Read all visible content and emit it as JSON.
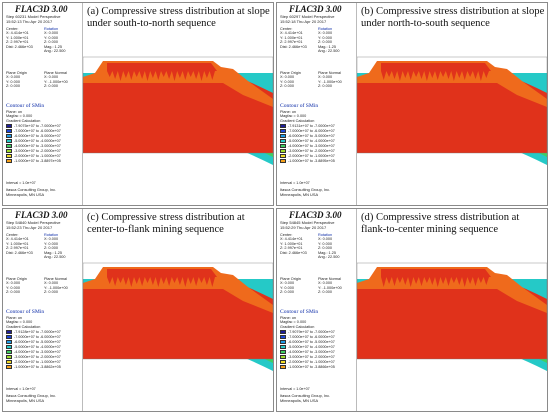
{
  "software_title": "FLAC3D 3.00",
  "legend_colors": [
    "#1f1f99",
    "#1c46d8",
    "#1f9ce8",
    "#25c9c7",
    "#3fcf62",
    "#9fdc2b",
    "#f0dc25",
    "#f6a21c",
    "#ef6a1c",
    "#e0321b"
  ],
  "common": {
    "rotation_title": "Rotation",
    "plane_origin_title": "Plane Origin",
    "plane_normal_title": "Plane Normal",
    "contour_title": "Contour of SMin",
    "plane_on": "Plane: on",
    "magfac": "Magfac = 0.000",
    "gradient": "Gradient Calculation",
    "interval": "Interval = 1.0e+07",
    "company": "Itasca Consulting Group, Inc.",
    "city": "Minneapolis, MN  USA"
  },
  "panels": [
    {
      "caption": "(a) Compressive stress distribution at slope under south-to-north sequence",
      "step_line": "Step 60231  Model Perspective",
      "time_line": "15:52:13 Thu Apr 20 2017",
      "center": [
        "Center:",
        "X: 4.414e+01",
        "Y: 1.000e+01",
        "Z: 2.997e+01",
        "Dist: 2.466e+03"
      ],
      "rotation": [
        "X: 0.000",
        "Y: 0.000",
        "Z: 0.000",
        "Mag.: 1.25",
        "Ang.: 22.500"
      ],
      "plane_origin": [
        "X: 0.000",
        "Y: 0.000",
        "Z: 0.000"
      ],
      "plane_normal": [
        "X: 0.000",
        "Y: -1.000e+00",
        "Z: 0.000"
      ],
      "legend": [
        "-7.9075e+07 to -7.0000e+07",
        "-7.0000e+07 to -6.0000e+07",
        "-6.0000e+07 to -5.0000e+07",
        "-5.0000e+07 to -4.0000e+07",
        "-4.0000e+07 to -3.0000e+07",
        "-3.0000e+07 to -2.0000e+07",
        "-2.0000e+07 to -1.0000e+07",
        "-1.0000e+07 to -3.8897e+05"
      ]
    },
    {
      "caption": "(b) Compressive stress distribution at slope under north-to-south sequence",
      "step_line": "Step 60297  Model Perspective",
      "time_line": "15:52:18 Thu Apr 20 2017",
      "center": [
        "Center:",
        "X: 4.414e+01",
        "Y: 1.000e+01",
        "Z: 2.997e+01",
        "Dist: 2.466e+03"
      ],
      "rotation": [
        "X: 0.000",
        "Y: 0.000",
        "Z: 0.000",
        "Mag.: 1.25",
        "Ang.: 22.500"
      ],
      "plane_origin": [
        "X: 0.000",
        "Y: 0.000",
        "Z: 0.000"
      ],
      "plane_normal": [
        "X: 0.000",
        "Y: -1.000e+00",
        "Z: 0.000"
      ],
      "legend": [
        "-7.9131e+07 to -7.0000e+07",
        "-7.0000e+07 to -6.0000e+07",
        "-6.0000e+07 to -5.0000e+07",
        "-5.0000e+07 to -4.0000e+07",
        "-4.0000e+07 to -3.0000e+07",
        "-3.0000e+07 to -2.0000e+07",
        "-2.0000e+07 to -1.0000e+07",
        "-1.0000e+07 to -3.8895e+05"
      ]
    },
    {
      "caption": "(c) Compressive stress distribution at center-to-flank mining sequence",
      "step_line": "Step 54840  Model Perspective",
      "time_line": "15:52:23 Thu Apr 20 2017",
      "center": [
        "Center:",
        "X: 4.414e+01",
        "Y: 1.000e+01",
        "Z: 2.997e+01",
        "Dist: 2.466e+03"
      ],
      "rotation": [
        "X: 0.000",
        "Y: 0.000",
        "Z: 0.000",
        "Mag.: 1.25",
        "Ang.: 22.500"
      ],
      "plane_origin": [
        "X: 0.000",
        "Y: 0.000",
        "Z: 0.000"
      ],
      "plane_normal": [
        "X: 0.000",
        "Y: -1.000e+00",
        "Z: 0.000"
      ],
      "legend": [
        "-7.9128e+07 to -7.0000e+07",
        "-7.0000e+07 to -6.0000e+07",
        "-6.0000e+07 to -5.0000e+07",
        "-5.0000e+07 to -4.0000e+07",
        "-4.0000e+07 to -3.0000e+07",
        "-3.0000e+07 to -2.0000e+07",
        "-2.0000e+07 to -1.0000e+07",
        "-1.0000e+07 to -3.8862e+05"
      ]
    },
    {
      "caption": "(d) Compressive stress distribution at flank-to-center mining sequence",
      "step_line": "Step 54845  Model Perspective",
      "time_line": "15:52:29 Thu Apr 20 2017",
      "center": [
        "Center:",
        "X: 4.414e+01",
        "Y: 1.000e+01",
        "Z: 2.997e+01",
        "Dist: 2.466e+03"
      ],
      "rotation": [
        "X: 0.000",
        "Y: 0.000",
        "Z: 0.000",
        "Mag.: 1.25",
        "Ang.: 22.500"
      ],
      "plane_origin": [
        "X: 0.000",
        "Y: 0.000",
        "Z: 0.000"
      ],
      "plane_normal": [
        "X: 0.000",
        "Y: -1.000e+00",
        "Z: 0.000"
      ],
      "legend": [
        "-7.9079e+07 to -7.0000e+07",
        "-7.0000e+07 to -6.0000e+07",
        "-6.0000e+07 to -5.0000e+07",
        "-5.0000e+07 to -4.0000e+07",
        "-4.0000e+07 to -3.0000e+07",
        "-3.0000e+07 to -2.0000e+07",
        "-2.0000e+07 to -1.0000e+07",
        "-1.0000e+07 to -3.8866e+05"
      ]
    }
  ]
}
